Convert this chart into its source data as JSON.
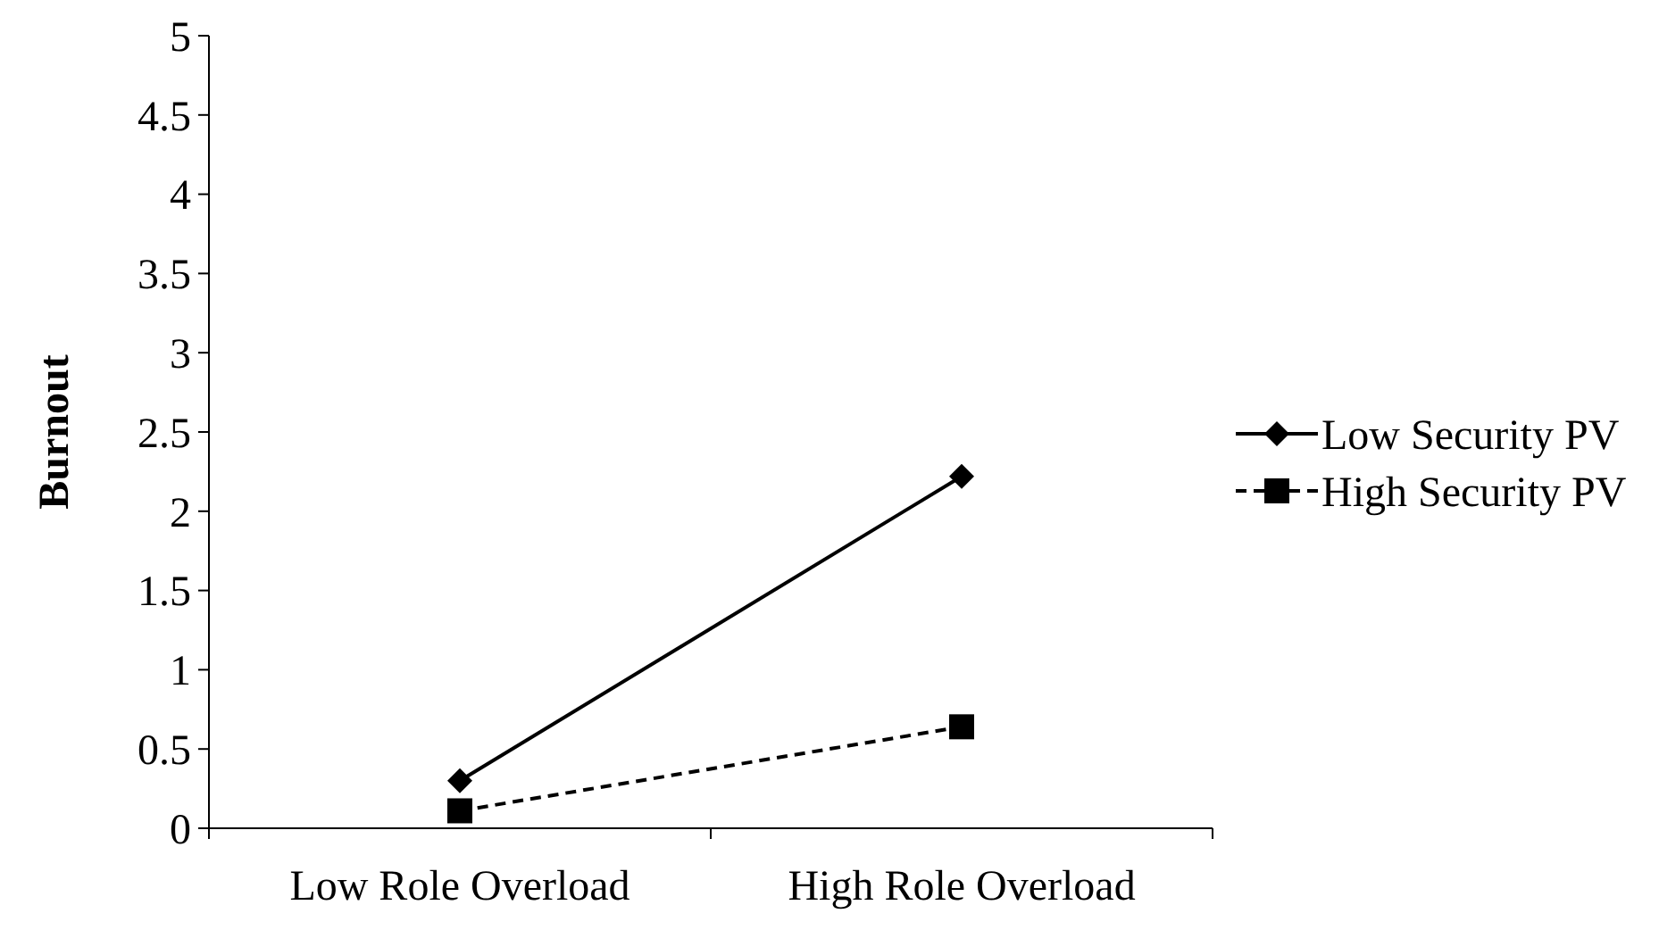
{
  "chart_data": {
    "type": "line",
    "ylabel": "Burnout",
    "categories": [
      "Low Role Overload",
      "High Role Overload"
    ],
    "series": [
      {
        "name": "Low Security PV",
        "color": "#000000",
        "values": [
          0.3,
          2.22
        ],
        "marker": "diamond",
        "line_style": "solid"
      },
      {
        "name": "High Security PV",
        "color": "#000000",
        "values": [
          0.11,
          0.64
        ],
        "marker": "square",
        "line_style": "dashed"
      }
    ],
    "ylim": [
      0,
      5
    ],
    "yticks": [
      0,
      0.5,
      1,
      1.5,
      2,
      2.5,
      3,
      3.5,
      4,
      4.5,
      5
    ],
    "legend": "right"
  }
}
